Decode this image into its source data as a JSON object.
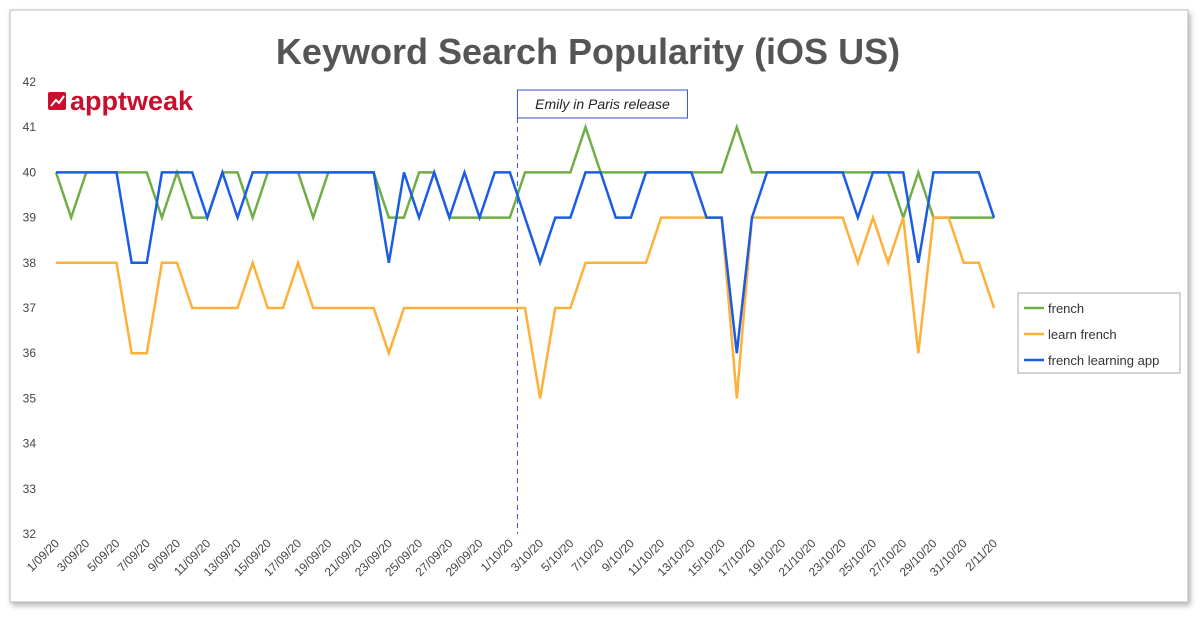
{
  "chart_data": {
    "type": "line",
    "title": "Keyword Search Popularity (iOS US)",
    "logo": "apptweak",
    "annotation": "Emily in Paris release",
    "categories": [
      "1/09/20",
      null,
      "3/09/20",
      null,
      "5/09/20",
      null,
      "7/09/20",
      null,
      "9/09/20",
      null,
      "11/09/20",
      null,
      "13/09/20",
      null,
      "15/09/20",
      null,
      "17/09/20",
      null,
      "19/09/20",
      null,
      "21/09/20",
      null,
      "23/09/20",
      null,
      "25/09/20",
      null,
      "27/09/20",
      null,
      "29/09/20",
      null,
      "1/10/20",
      null,
      "3/10/20",
      null,
      "5/10/20",
      null,
      "7/10/20",
      null,
      "9/10/20",
      null,
      "11/10/20",
      null,
      "13/10/20",
      null,
      "15/10/20",
      null,
      "17/10/20",
      null,
      "19/10/20",
      null,
      "21/10/20",
      null,
      "23/10/20",
      null,
      "25/10/20",
      null,
      "27/10/20",
      null,
      "29/10/20",
      null,
      "31/10/20",
      null,
      "2/11/20"
    ],
    "series": [
      {
        "name": "french",
        "color": "#70ad47",
        "values": [
          40,
          39,
          40,
          40,
          40,
          40,
          40,
          39,
          40,
          39,
          39,
          40,
          40,
          39,
          40,
          40,
          40,
          39,
          40,
          40,
          40,
          40,
          39,
          39,
          40,
          40,
          39,
          39,
          39,
          39,
          39,
          40,
          40,
          40,
          40,
          41,
          40,
          40,
          40,
          40,
          40,
          40,
          40,
          40,
          40,
          41,
          40,
          40,
          40,
          40,
          40,
          40,
          40,
          40,
          40,
          40,
          39,
          40,
          39,
          39,
          39,
          39,
          39
        ]
      },
      {
        "name": "learn french",
        "color": "#ffb038",
        "values": [
          38,
          38,
          38,
          38,
          38,
          36,
          36,
          38,
          38,
          37,
          37,
          37,
          37,
          38,
          37,
          37,
          38,
          37,
          37,
          37,
          37,
          37,
          36,
          37,
          37,
          37,
          37,
          37,
          37,
          37,
          37,
          37,
          35,
          37,
          37,
          38,
          38,
          38,
          38,
          38,
          39,
          39,
          39,
          39,
          39,
          35,
          39,
          39,
          39,
          39,
          39,
          39,
          39,
          38,
          39,
          38,
          39,
          36,
          39,
          39,
          38,
          38,
          37
        ]
      },
      {
        "name": "french learning app",
        "color": "#1a5ce5",
        "values": [
          40,
          40,
          40,
          40,
          40,
          38,
          38,
          40,
          40,
          40,
          39,
          40,
          39,
          40,
          40,
          40,
          40,
          40,
          40,
          40,
          40,
          40,
          38,
          40,
          39,
          40,
          39,
          40,
          39,
          40,
          40,
          39,
          38,
          39,
          39,
          40,
          40,
          39,
          39,
          40,
          40,
          40,
          40,
          39,
          39,
          36,
          39,
          40,
          40,
          40,
          40,
          40,
          40,
          39,
          40,
          40,
          40,
          38,
          40,
          40,
          40,
          40,
          39
        ]
      }
    ],
    "ylim": [
      32,
      42
    ],
    "yticks": [
      32,
      33,
      34,
      35,
      36,
      37,
      38,
      39,
      40,
      41,
      42
    ],
    "grid": false,
    "legend": "right"
  }
}
